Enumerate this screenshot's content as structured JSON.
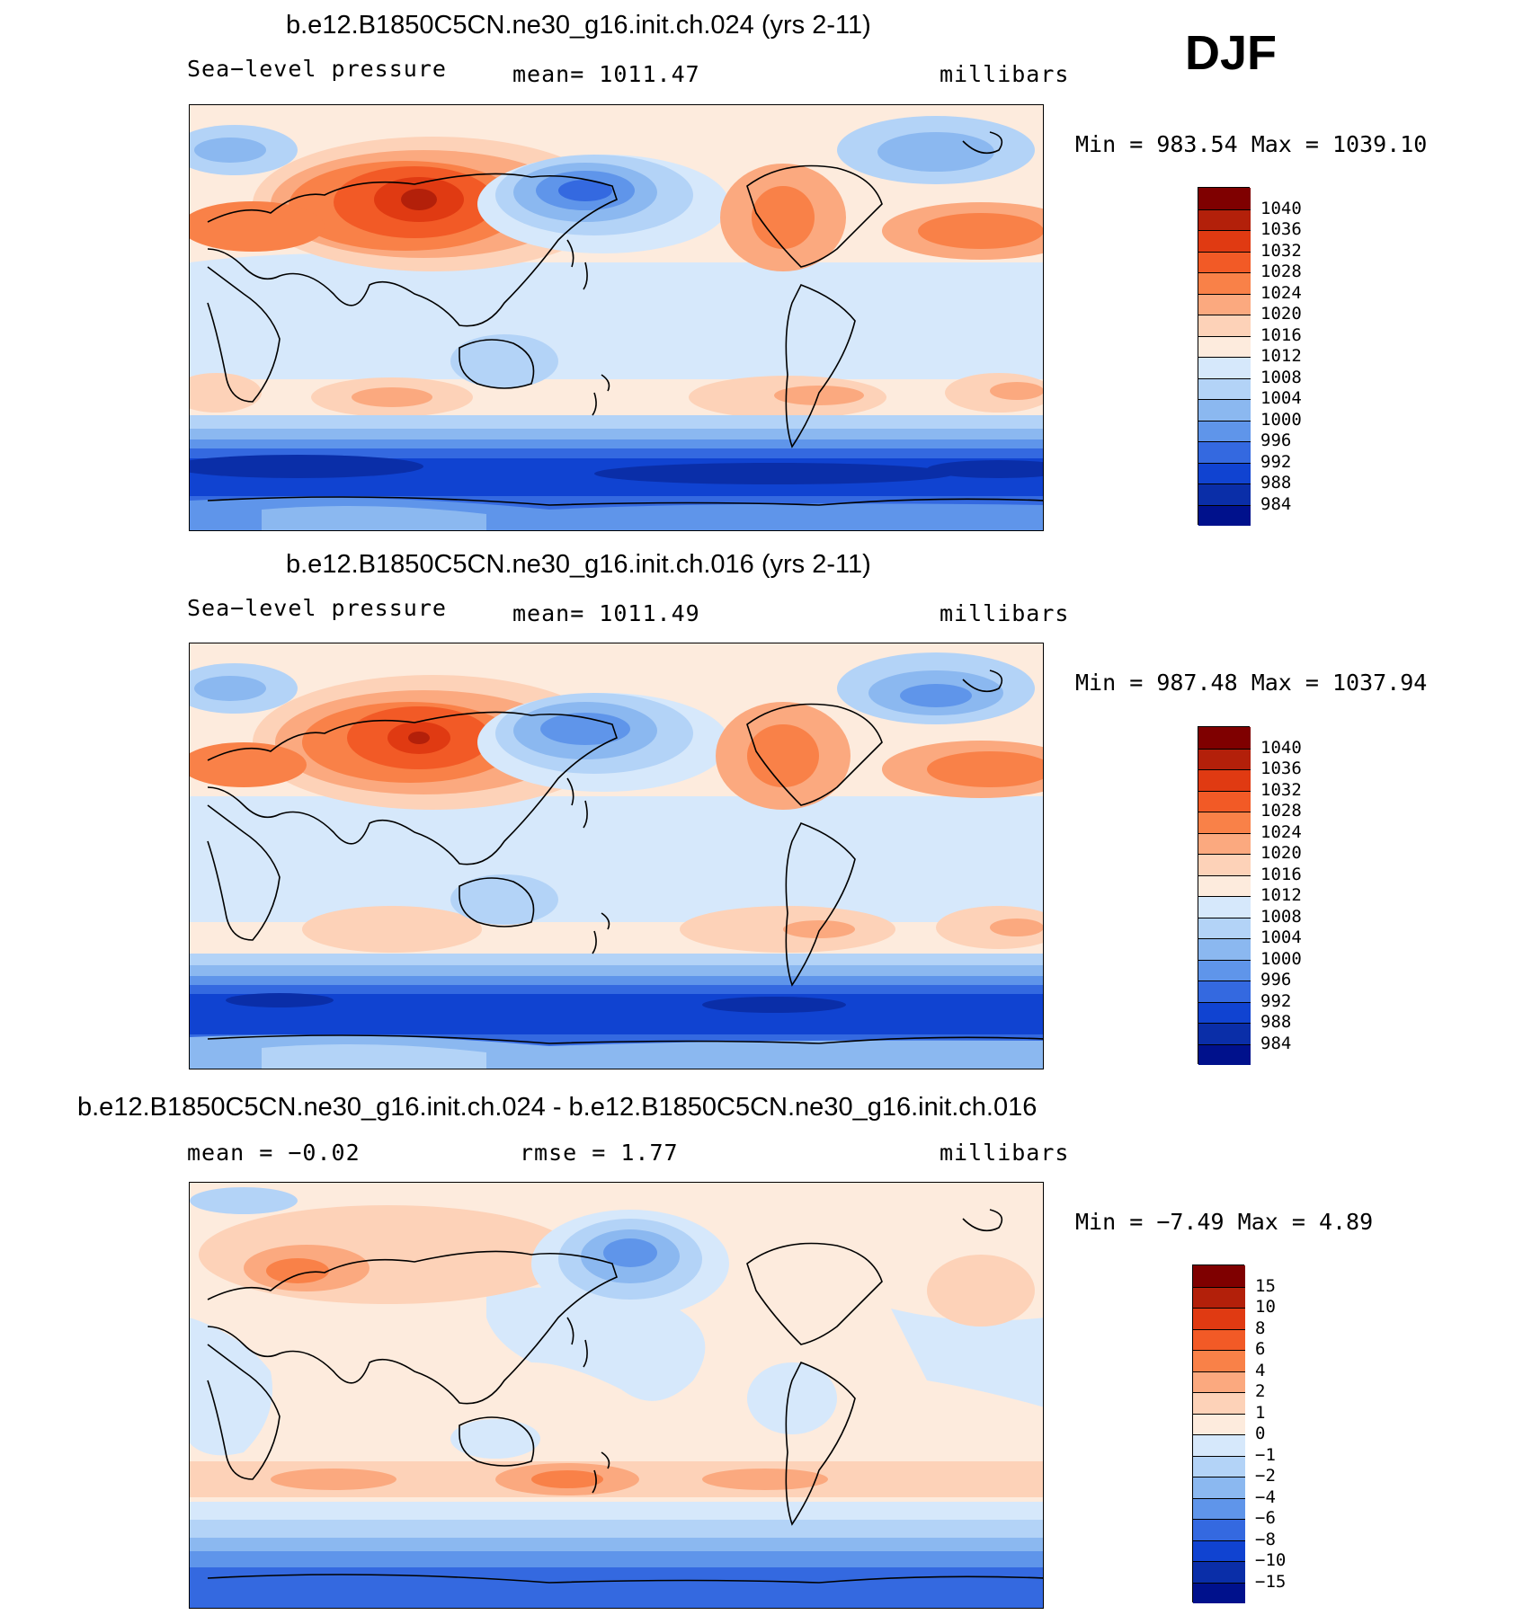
{
  "season": "DJF",
  "panels": [
    {
      "title": "b.e12.B1850C5CN.ne30_g16.init.ch.024 (yrs 2-11)",
      "left_label": "Sea−level pressure",
      "mid_label": "mean=  1011.47",
      "right_label": "millibars",
      "min_label": "Min",
      "min_value": "983.54",
      "max_label": "Max",
      "max_value": "1039.10",
      "colorbar_levels": [
        "1040",
        "1036",
        "1032",
        "1028",
        "1024",
        "1020",
        "1016",
        "1012",
        "1008",
        "1004",
        "1000",
        "996",
        "992",
        "988",
        "984"
      ]
    },
    {
      "title": "b.e12.B1850C5CN.ne30_g16.init.ch.016 (yrs 2-11)",
      "left_label": "Sea−level pressure",
      "mid_label": "mean=  1011.49",
      "right_label": "millibars",
      "min_label": "Min",
      "min_value": "987.48",
      "max_label": "Max",
      "max_value": "1037.94",
      "colorbar_levels": [
        "1040",
        "1036",
        "1032",
        "1028",
        "1024",
        "1020",
        "1016",
        "1012",
        "1008",
        "1004",
        "1000",
        "996",
        "992",
        "988",
        "984"
      ]
    },
    {
      "title": "b.e12.B1850C5CN.ne30_g16.init.ch.024 - b.e12.B1850C5CN.ne30_g16.init.ch.016",
      "left_label": "mean =   −0.02",
      "mid_label": "rmse =    1.77",
      "right_label": "millibars",
      "min_label": "Min",
      "min_value": "−7.49",
      "max_label": "Max",
      "max_value": "4.89",
      "colorbar_levels": [
        "15",
        "10",
        "8",
        "6",
        "4",
        "2",
        "1",
        "0",
        "−1",
        "−2",
        "−4",
        "−6",
        "−8",
        "−10",
        "−15"
      ]
    }
  ],
  "colors": {
    "scale": [
      "#7f0000",
      "#b3200a",
      "#e03a12",
      "#f25a26",
      "#f98148",
      "#fba97f",
      "#fdd2b8",
      "#fdebdd",
      "#d6e8fb",
      "#b3d3f7",
      "#8bb8f0",
      "#5f95ea",
      "#3469e0",
      "#1043d1",
      "#0a2ea8",
      "#00118c"
    ]
  }
}
